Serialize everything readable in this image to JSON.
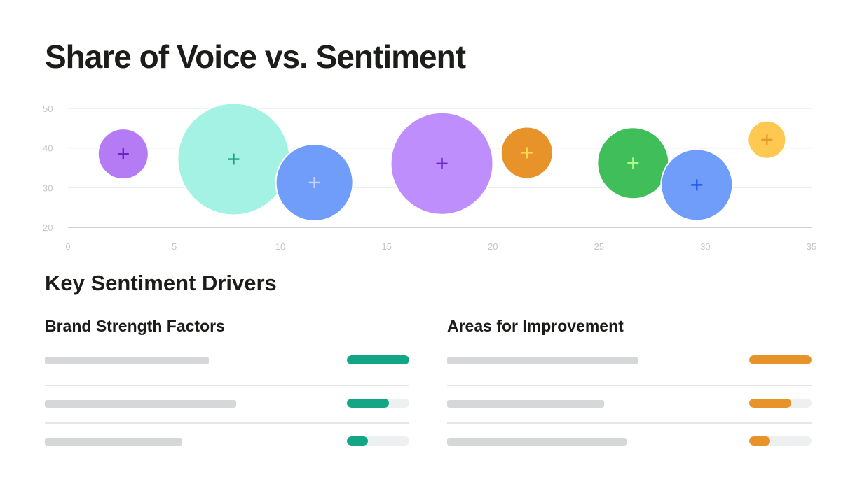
{
  "title": "Share of Voice vs. Sentiment",
  "chart_data": {
    "type": "scatter",
    "subtype": "bubble",
    "xlim": [
      0,
      35
    ],
    "ylim": [
      20,
      50
    ],
    "x_ticks": [
      0,
      5,
      10,
      15,
      20,
      25,
      30,
      35
    ],
    "y_ticks": [
      20,
      30,
      40,
      50
    ],
    "grid": true,
    "points": [
      {
        "x": 2.6,
        "y": 38.5,
        "r": 36,
        "fill": "#b57bf5",
        "marker": "#6f22c9"
      },
      {
        "x": 7.8,
        "y": 37.2,
        "r": 80,
        "fill": "#a4f2e3",
        "marker": "#1aa284"
      },
      {
        "x": 11.6,
        "y": 31.3,
        "r": 55,
        "fill": "#709df9",
        "marker": "#c2d4fb"
      },
      {
        "x": 17.6,
        "y": 36.1,
        "r": 73,
        "fill": "#be8efc",
        "marker": "#6f22c9"
      },
      {
        "x": 21.6,
        "y": 38.8,
        "r": 37,
        "fill": "#e8922a",
        "marker": "#fdd74c"
      },
      {
        "x": 26.6,
        "y": 36.2,
        "r": 51,
        "fill": "#40be5a",
        "marker": "#adfc86"
      },
      {
        "x": 29.6,
        "y": 30.7,
        "r": 51,
        "fill": "#709df9",
        "marker": "#1d5cf0"
      },
      {
        "x": 32.9,
        "y": 42.1,
        "r": 27,
        "fill": "#ffc951",
        "marker": "#e59a2b"
      }
    ]
  },
  "drivers": {
    "title": "Key Sentiment Drivers",
    "strengths": {
      "title": "Brand Strength Factors",
      "color": "#13a684",
      "rows": [
        {
          "label_len": 0.45,
          "value": 1.0
        },
        {
          "label_len": 0.525,
          "value": 0.67
        },
        {
          "label_len": 0.377,
          "value": 0.34
        }
      ]
    },
    "improvements": {
      "title": "Areas for Improvement",
      "color": "#e8922a",
      "rows": [
        {
          "label_len": 0.523,
          "value": 1.0
        },
        {
          "label_len": 0.431,
          "value": 0.67
        },
        {
          "label_len": 0.492,
          "value": 0.34
        }
      ]
    }
  }
}
